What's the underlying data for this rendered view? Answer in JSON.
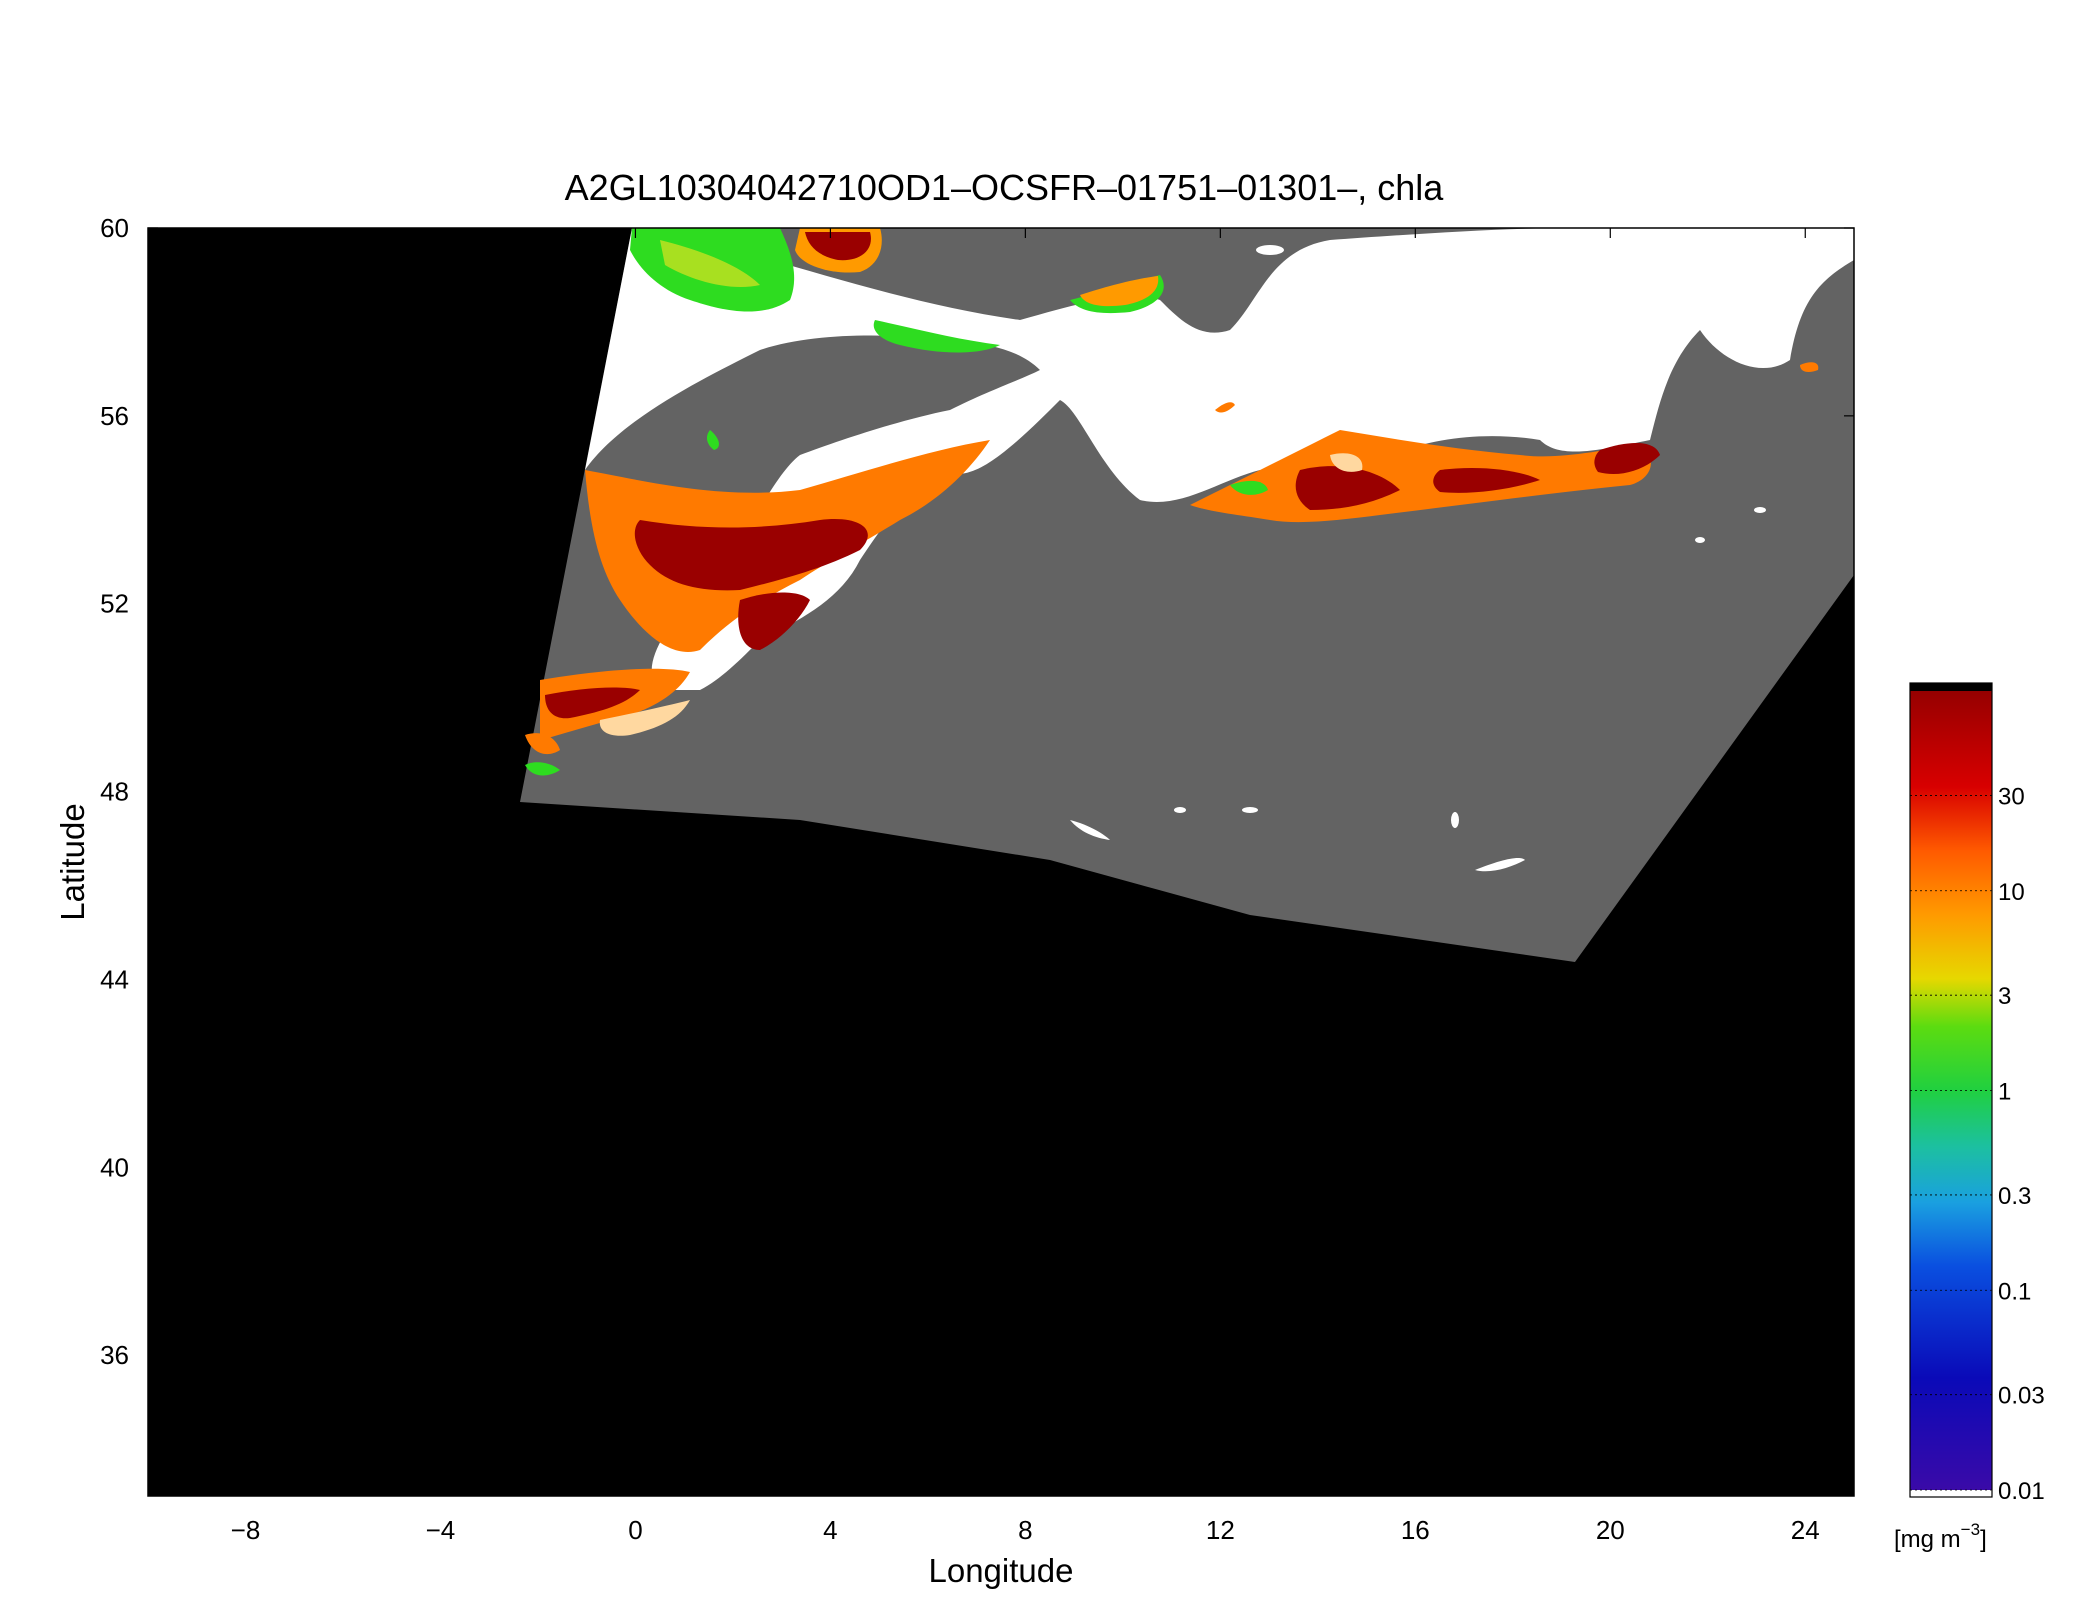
{
  "title": "A2GL10304042710OD1–OCSFR–01751–01301–, chla",
  "xlabel": "Longitude",
  "ylabel": "Latitude",
  "x_range": [
    -10,
    25
  ],
  "y_range": [
    33,
    60
  ],
  "x_ticks": [
    "−8",
    "−4",
    "0",
    "4",
    "8",
    "12",
    "16",
    "20",
    "24"
  ],
  "x_tick_values": [
    -8,
    -4,
    0,
    4,
    8,
    12,
    16,
    20,
    24
  ],
  "y_ticks": [
    "60",
    "56",
    "52",
    "48",
    "44",
    "40",
    "36"
  ],
  "y_tick_values": [
    60,
    56,
    52,
    48,
    44,
    40,
    36
  ],
  "colorbar": {
    "unit_prefix": "[mg m",
    "unit_exp": "−3",
    "unit_suffix": "]",
    "range": [
      0.01,
      100
    ],
    "scale": "log",
    "tick_labels": [
      "30",
      "10",
      "3",
      "1",
      "0.3",
      "0.1",
      "0.03",
      "0.01"
    ],
    "tick_values": [
      30,
      10,
      3,
      1,
      0.3,
      0.1,
      0.03,
      0.01
    ]
  },
  "colors": {
    "no_data": "#000000",
    "land": "#636363",
    "cloud": "#ffffff",
    "high_chl": "#9a0000",
    "mid_chl": "#ff7a00",
    "low_chl": "#2edc20"
  },
  "chart_data": {
    "type": "heatmap",
    "variable": "chla",
    "x_range": [
      -10,
      25
    ],
    "y_range": [
      33,
      60
    ],
    "colorscale": "log",
    "colorbar_range": [
      0.01,
      100
    ],
    "grid": false,
    "swath_corners_lonlat": [
      [
        0,
        60
      ],
      [
        24.8,
        60
      ],
      [
        24.8,
        52
      ],
      [
        19.2,
        45
      ],
      [
        -2.3,
        48.3
      ]
    ]
  }
}
